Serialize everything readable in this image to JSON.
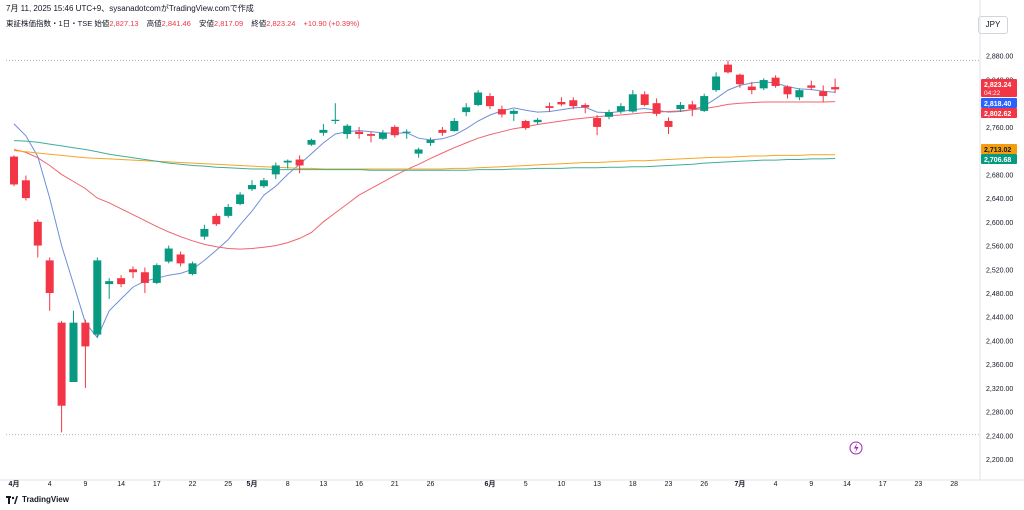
{
  "header": {
    "timestamp_line": "7月 11, 2025 15:46 UTC+9、sysanadotcomがTradingView.comで作成"
  },
  "ohlc": {
    "symbol_line": "東証株価指数・1日・TSE",
    "open_label": "始値",
    "open": "2,827.13",
    "high_label": "高値",
    "high": "2,841.46",
    "low_label": "安値",
    "low": "2,817.09",
    "close_label": "終値",
    "close": "2,823.24",
    "change": "+10.90 (+0.39%)"
  },
  "currency_button": "JPY",
  "price_tags": {
    "last_price": "2,823.24",
    "countdown": "04:22",
    "ma_short": "2,818.40",
    "ma_mid": "2,802.62",
    "ma_long1": "2,713.02",
    "ma_long2": "2,706.68"
  },
  "footer": {
    "brand": "TradingView"
  },
  "colors": {
    "up": "#089981",
    "down": "#f23645",
    "ma_short": "#6e8fd8",
    "ma_mid": "#f0636f",
    "ma_long1": "#f5a623",
    "ma_long2": "#3fae9a",
    "tag_last": "#f23645",
    "tag_short": "#2962ff",
    "tag_mid": "#f23645",
    "tag_long1": "#f59e0b",
    "tag_long2": "#089981",
    "lightning": "#9c27b0"
  },
  "icons": {
    "alert": "lightning-icon"
  },
  "chart_data": {
    "type": "candlestick",
    "y_ticks": [
      "2,880.00",
      "2,840.00",
      "2,800.00",
      "2,760.00",
      "2,720.00",
      "2,680.00",
      "2,640.00",
      "2,600.00",
      "2,560.00",
      "2,520.00",
      "2,480.00",
      "2,440.00",
      "2,400.00",
      "2,360.00",
      "2,320.00",
      "2,280.00",
      "2,240.00",
      "2,200.00"
    ],
    "y_tick_values": [
      2880,
      2840,
      2800,
      2760,
      2720,
      2680,
      2640,
      2600,
      2560,
      2520,
      2480,
      2440,
      2400,
      2360,
      2320,
      2280,
      2240,
      2200
    ],
    "ylim": [
      2185,
      2920
    ],
    "x_ticks": [
      {
        "label": "4月",
        "date": "2025-04-01",
        "bold": true
      },
      {
        "label": "4",
        "date": "2025-04-04"
      },
      {
        "label": "9",
        "date": "2025-04-09"
      },
      {
        "label": "14",
        "date": "2025-04-14"
      },
      {
        "label": "17",
        "date": "2025-04-17"
      },
      {
        "label": "22",
        "date": "2025-04-22"
      },
      {
        "label": "25",
        "date": "2025-04-25"
      },
      {
        "label": "5月",
        "date": "2025-05-01",
        "bold": true
      },
      {
        "label": "8",
        "date": "2025-05-08"
      },
      {
        "label": "13",
        "date": "2025-05-13"
      },
      {
        "label": "16",
        "date": "2025-05-16"
      },
      {
        "label": "21",
        "date": "2025-05-21"
      },
      {
        "label": "26",
        "date": "2025-05-26"
      },
      {
        "label": "6月",
        "date": "2025-06-02",
        "bold": true
      },
      {
        "label": "5",
        "date": "2025-06-05"
      },
      {
        "label": "10",
        "date": "2025-06-10"
      },
      {
        "label": "13",
        "date": "2025-06-13"
      },
      {
        "label": "18",
        "date": "2025-06-18"
      },
      {
        "label": "23",
        "date": "2025-06-23"
      },
      {
        "label": "26",
        "date": "2025-06-26"
      },
      {
        "label": "7月",
        "date": "2025-07-01",
        "bold": true
      },
      {
        "label": "4",
        "date": "2025-07-04"
      },
      {
        "label": "9",
        "date": "2025-07-09"
      },
      {
        "label": "14",
        "date": "2025-07-14"
      },
      {
        "label": "17",
        "date": "2025-07-17"
      },
      {
        "label": "23",
        "date": "2025-07-23"
      },
      {
        "label": "28",
        "date": "2025-07-28"
      }
    ],
    "x_label_order": [
      "2025-04-01",
      "2025-04-02",
      "2025-04-03",
      "2025-04-04",
      "2025-04-07",
      "2025-04-08",
      "2025-04-09",
      "2025-04-10",
      "2025-04-11",
      "2025-04-14",
      "2025-04-15",
      "2025-04-16",
      "2025-04-17",
      "2025-04-18",
      "2025-04-21",
      "2025-04-22",
      "2025-04-23",
      "2025-04-24",
      "2025-04-25",
      "2025-04-28",
      "2025-05-01",
      "2025-05-02",
      "2025-05-07",
      "2025-05-08",
      "2025-05-09",
      "2025-05-12",
      "2025-05-13",
      "2025-05-14",
      "2025-05-15",
      "2025-05-16",
      "2025-05-19",
      "2025-05-20",
      "2025-05-21",
      "2025-05-22",
      "2025-05-23",
      "2025-05-26",
      "2025-05-27",
      "2025-05-28",
      "2025-05-29",
      "2025-05-30",
      "2025-06-02",
      "2025-06-03",
      "2025-06-04",
      "2025-06-05",
      "2025-06-06",
      "2025-06-09",
      "2025-06-10",
      "2025-06-11",
      "2025-06-12",
      "2025-06-13",
      "2025-06-16",
      "2025-06-17",
      "2025-06-18",
      "2025-06-19",
      "2025-06-20",
      "2025-06-23",
      "2025-06-24",
      "2025-06-25",
      "2025-06-26",
      "2025-06-27",
      "2025-06-30",
      "2025-07-01",
      "2025-07-02",
      "2025-07-03",
      "2025-07-04",
      "2025-07-07",
      "2025-07-08",
      "2025-07-09",
      "2025-07-10",
      "2025-07-11",
      "2025-07-14",
      "2025-07-15",
      "2025-07-16",
      "2025-07-17",
      "2025-07-18",
      "2025-07-22",
      "2025-07-23",
      "2025-07-24",
      "2025-07-25",
      "2025-07-28",
      "2025-07-29",
      "2025-07-30"
    ],
    "candles": [
      {
        "date": "2025-04-01",
        "o": 2710,
        "h": 2712,
        "l": 2660,
        "c": 2663
      },
      {
        "date": "2025-04-02",
        "o": 2670,
        "h": 2678,
        "l": 2636,
        "c": 2640
      },
      {
        "date": "2025-04-03",
        "o": 2600,
        "h": 2604,
        "l": 2540,
        "c": 2560
      },
      {
        "date": "2025-04-04",
        "o": 2535,
        "h": 2540,
        "l": 2450,
        "c": 2480
      },
      {
        "date": "2025-04-07",
        "o": 2430,
        "h": 2433,
        "l": 2245,
        "c": 2290
      },
      {
        "date": "2025-04-08",
        "o": 2330,
        "h": 2450,
        "l": 2330,
        "c": 2430
      },
      {
        "date": "2025-04-09",
        "o": 2430,
        "h": 2435,
        "l": 2320,
        "c": 2390
      },
      {
        "date": "2025-04-10",
        "o": 2410,
        "h": 2540,
        "l": 2405,
        "c": 2535
      },
      {
        "date": "2025-04-11",
        "o": 2495,
        "h": 2505,
        "l": 2470,
        "c": 2500
      },
      {
        "date": "2025-04-14",
        "o": 2505,
        "h": 2510,
        "l": 2490,
        "c": 2495
      },
      {
        "date": "2025-04-15",
        "o": 2520,
        "h": 2525,
        "l": 2505,
        "c": 2515
      },
      {
        "date": "2025-04-16",
        "o": 2515,
        "h": 2523,
        "l": 2480,
        "c": 2497
      },
      {
        "date": "2025-04-17",
        "o": 2497,
        "h": 2530,
        "l": 2495,
        "c": 2527
      },
      {
        "date": "2025-04-18",
        "o": 2533,
        "h": 2560,
        "l": 2530,
        "c": 2555
      },
      {
        "date": "2025-04-21",
        "o": 2545,
        "h": 2550,
        "l": 2525,
        "c": 2530
      },
      {
        "date": "2025-04-22",
        "o": 2512,
        "h": 2533,
        "l": 2510,
        "c": 2530
      },
      {
        "date": "2025-04-23",
        "o": 2575,
        "h": 2595,
        "l": 2570,
        "c": 2588
      },
      {
        "date": "2025-04-24",
        "o": 2610,
        "h": 2614,
        "l": 2593,
        "c": 2596
      },
      {
        "date": "2025-04-25",
        "o": 2610,
        "h": 2630,
        "l": 2607,
        "c": 2625
      },
      {
        "date": "2025-04-28",
        "o": 2630,
        "h": 2650,
        "l": 2628,
        "c": 2646
      },
      {
        "date": "2025-05-01",
        "o": 2655,
        "h": 2670,
        "l": 2652,
        "c": 2662
      },
      {
        "date": "2025-05-02",
        "o": 2660,
        "h": 2674,
        "l": 2657,
        "c": 2670
      },
      {
        "date": "2025-05-07",
        "o": 2680,
        "h": 2700,
        "l": 2672,
        "c": 2695
      },
      {
        "date": "2025-05-08",
        "o": 2700,
        "h": 2705,
        "l": 2690,
        "c": 2703
      },
      {
        "date": "2025-05-09",
        "o": 2705,
        "h": 2712,
        "l": 2682,
        "c": 2695
      },
      {
        "date": "2025-05-12",
        "o": 2730,
        "h": 2740,
        "l": 2728,
        "c": 2738
      },
      {
        "date": "2025-05-13",
        "o": 2750,
        "h": 2765,
        "l": 2745,
        "c": 2755
      },
      {
        "date": "2025-05-14",
        "o": 2770,
        "h": 2800,
        "l": 2765,
        "c": 2772
      },
      {
        "date": "2025-05-15",
        "o": 2748,
        "h": 2765,
        "l": 2740,
        "c": 2762
      },
      {
        "date": "2025-05-16",
        "o": 2752,
        "h": 2760,
        "l": 2740,
        "c": 2748
      },
      {
        "date": "2025-05-19",
        "o": 2748,
        "h": 2752,
        "l": 2734,
        "c": 2745
      },
      {
        "date": "2025-05-20",
        "o": 2740,
        "h": 2755,
        "l": 2738,
        "c": 2750
      },
      {
        "date": "2025-05-21",
        "o": 2760,
        "h": 2763,
        "l": 2742,
        "c": 2746
      },
      {
        "date": "2025-05-22",
        "o": 2750,
        "h": 2756,
        "l": 2740,
        "c": 2752
      },
      {
        "date": "2025-05-23",
        "o": 2715,
        "h": 2725,
        "l": 2708,
        "c": 2722
      },
      {
        "date": "2025-05-26",
        "o": 2733,
        "h": 2742,
        "l": 2728,
        "c": 2738
      },
      {
        "date": "2025-05-27",
        "o": 2755,
        "h": 2760,
        "l": 2745,
        "c": 2750
      },
      {
        "date": "2025-05-28",
        "o": 2753,
        "h": 2775,
        "l": 2752,
        "c": 2770
      },
      {
        "date": "2025-05-29",
        "o": 2785,
        "h": 2800,
        "l": 2778,
        "c": 2793
      },
      {
        "date": "2025-05-30",
        "o": 2797,
        "h": 2822,
        "l": 2795,
        "c": 2818
      },
      {
        "date": "2025-06-02",
        "o": 2812,
        "h": 2817,
        "l": 2790,
        "c": 2795
      },
      {
        "date": "2025-06-03",
        "o": 2790,
        "h": 2796,
        "l": 2776,
        "c": 2781
      },
      {
        "date": "2025-06-04",
        "o": 2782,
        "h": 2790,
        "l": 2770,
        "c": 2787
      },
      {
        "date": "2025-06-05",
        "o": 2770,
        "h": 2772,
        "l": 2755,
        "c": 2758
      },
      {
        "date": "2025-06-06",
        "o": 2768,
        "h": 2775,
        "l": 2764,
        "c": 2772
      },
      {
        "date": "2025-06-09",
        "o": 2795,
        "h": 2801,
        "l": 2785,
        "c": 2792
      },
      {
        "date": "2025-06-10",
        "o": 2802,
        "h": 2810,
        "l": 2795,
        "c": 2798
      },
      {
        "date": "2025-06-11",
        "o": 2805,
        "h": 2810,
        "l": 2790,
        "c": 2795
      },
      {
        "date": "2025-06-12",
        "o": 2797,
        "h": 2800,
        "l": 2783,
        "c": 2793
      },
      {
        "date": "2025-06-13",
        "o": 2775,
        "h": 2780,
        "l": 2746,
        "c": 2760
      },
      {
        "date": "2025-06-16",
        "o": 2777,
        "h": 2789,
        "l": 2773,
        "c": 2785
      },
      {
        "date": "2025-06-17",
        "o": 2786,
        "h": 2800,
        "l": 2782,
        "c": 2795
      },
      {
        "date": "2025-06-18",
        "o": 2786,
        "h": 2822,
        "l": 2784,
        "c": 2815
      },
      {
        "date": "2025-06-19",
        "o": 2815,
        "h": 2820,
        "l": 2795,
        "c": 2797
      },
      {
        "date": "2025-06-20",
        "o": 2800,
        "h": 2808,
        "l": 2778,
        "c": 2782
      },
      {
        "date": "2025-06-23",
        "o": 2770,
        "h": 2776,
        "l": 2748,
        "c": 2760
      },
      {
        "date": "2025-06-24",
        "o": 2790,
        "h": 2802,
        "l": 2785,
        "c": 2797
      },
      {
        "date": "2025-06-25",
        "o": 2798,
        "h": 2804,
        "l": 2778,
        "c": 2790
      },
      {
        "date": "2025-06-26",
        "o": 2787,
        "h": 2816,
        "l": 2785,
        "c": 2812
      },
      {
        "date": "2025-06-27",
        "o": 2822,
        "h": 2852,
        "l": 2819,
        "c": 2845
      },
      {
        "date": "2025-06-30",
        "o": 2865,
        "h": 2872,
        "l": 2850,
        "c": 2852
      },
      {
        "date": "2025-07-01",
        "o": 2848,
        "h": 2850,
        "l": 2826,
        "c": 2832
      },
      {
        "date": "2025-07-02",
        "o": 2828,
        "h": 2836,
        "l": 2815,
        "c": 2822
      },
      {
        "date": "2025-07-03",
        "o": 2825,
        "h": 2842,
        "l": 2822,
        "c": 2839
      },
      {
        "date": "2025-07-04",
        "o": 2843,
        "h": 2847,
        "l": 2826,
        "c": 2829
      },
      {
        "date": "2025-07-07",
        "o": 2828,
        "h": 2830,
        "l": 2808,
        "c": 2815
      },
      {
        "date": "2025-07-08",
        "o": 2810,
        "h": 2825,
        "l": 2805,
        "c": 2822
      },
      {
        "date": "2025-07-09",
        "o": 2830,
        "h": 2838,
        "l": 2822,
        "c": 2826
      },
      {
        "date": "2025-07-10",
        "o": 2820,
        "h": 2830,
        "l": 2802,
        "c": 2812
      },
      {
        "date": "2025-07-11",
        "o": 2827.13,
        "h": 2841.46,
        "l": 2817.09,
        "c": 2823.24
      }
    ],
    "series": [
      {
        "key": "ma_short",
        "color": "#6e8fd8",
        "values": [
          2765,
          2745,
          2710,
          2640,
          2560,
          2495,
          2430,
          2405,
          2450,
          2470,
          2490,
          2500,
          2505,
          2510,
          2513,
          2520,
          2535,
          2552,
          2570,
          2595,
          2618,
          2645,
          2660,
          2680,
          2697,
          2715,
          2733,
          2748,
          2752,
          2754,
          2752,
          2750,
          2749,
          2750,
          2741,
          2738,
          2740,
          2746,
          2757,
          2770,
          2780,
          2787,
          2792,
          2788,
          2785,
          2786,
          2789,
          2792,
          2793,
          2785,
          2784,
          2786,
          2789,
          2791,
          2788,
          2785,
          2786,
          2789,
          2795,
          2808,
          2822,
          2830,
          2834,
          2836,
          2834,
          2828,
          2824,
          2823,
          2820,
          2818.4
        ]
      },
      {
        "key": "ma_mid",
        "color": "#f0636f",
        "values": [
          2722,
          2717,
          2708,
          2695,
          2680,
          2668,
          2656,
          2640,
          2632,
          2622,
          2612,
          2602,
          2592,
          2583,
          2575,
          2568,
          2562,
          2558,
          2555,
          2554,
          2555,
          2557,
          2560,
          2565,
          2572,
          2582,
          2600,
          2615,
          2630,
          2645,
          2656,
          2667,
          2678,
          2688,
          2697,
          2707,
          2716,
          2725,
          2733,
          2741,
          2747,
          2752,
          2757,
          2760,
          2764,
          2767,
          2770,
          2773,
          2775,
          2777,
          2779,
          2780,
          2782,
          2784,
          2785,
          2786,
          2787,
          2789,
          2791,
          2794,
          2798,
          2800,
          2801,
          2802,
          2802,
          2802,
          2802,
          2802,
          2802,
          2802.62
        ]
      },
      {
        "key": "ma_long1",
        "color": "#f5a623",
        "values": [
          2720,
          2718,
          2716,
          2714,
          2712,
          2710,
          2708,
          2707,
          2706,
          2705,
          2704,
          2703,
          2702,
          2701,
          2700,
          2699,
          2698,
          2697,
          2696,
          2695,
          2694,
          2693,
          2692,
          2691,
          2690,
          2690,
          2689,
          2689,
          2689,
          2689,
          2689,
          2689,
          2689,
          2689,
          2689,
          2689,
          2689,
          2690,
          2690,
          2691,
          2692,
          2693,
          2694,
          2695,
          2696,
          2697,
          2698,
          2699,
          2700,
          2700,
          2701,
          2702,
          2703,
          2703,
          2704,
          2705,
          2706,
          2707,
          2708,
          2709,
          2709,
          2710,
          2711,
          2711,
          2712,
          2712,
          2712,
          2713,
          2713,
          2713.02
        ]
      },
      {
        "key": "ma_long2",
        "color": "#3fae9a",
        "values": [
          2737,
          2736,
          2734,
          2731,
          2728,
          2725,
          2722,
          2718,
          2714,
          2711,
          2708,
          2705,
          2702,
          2699,
          2697,
          2695,
          2694,
          2692,
          2691,
          2690,
          2689,
          2689,
          2688,
          2688,
          2688,
          2688,
          2688,
          2688,
          2688,
          2688,
          2687,
          2687,
          2687,
          2687,
          2687,
          2687,
          2687,
          2687,
          2687,
          2688,
          2688,
          2688,
          2689,
          2689,
          2690,
          2690,
          2690,
          2691,
          2691,
          2691,
          2692,
          2692,
          2693,
          2693,
          2694,
          2695,
          2696,
          2697,
          2699,
          2700,
          2701,
          2702,
          2703,
          2704,
          2704,
          2705,
          2705,
          2706,
          2706,
          2706.68
        ]
      }
    ],
    "reference_lines": [
      2872,
      2241
    ],
    "xlabel": "",
    "ylabel": ""
  }
}
